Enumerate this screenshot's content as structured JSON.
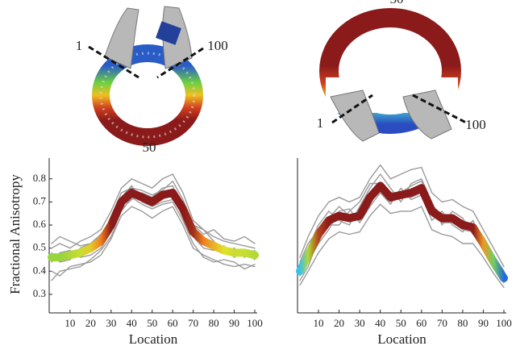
{
  "chart_data": [
    {
      "type": "line",
      "ylabel": "Fractional Anisotropy",
      "xlabel": "Location",
      "annotations": [
        "1",
        "100",
        "50"
      ],
      "x": [
        1,
        5,
        10,
        15,
        20,
        25,
        30,
        35,
        40,
        45,
        50,
        55,
        60,
        65,
        70,
        75,
        80,
        85,
        90,
        95,
        100
      ],
      "xlim": [
        1,
        100
      ],
      "xticks": [
        10,
        20,
        30,
        40,
        50,
        60,
        70,
        80,
        90,
        100
      ],
      "ylim": [
        0.23,
        0.89
      ],
      "yticks": [
        0.3,
        0.4,
        0.5,
        0.6,
        0.7,
        0.8
      ],
      "colormap": {
        "values": [
          0.36,
          0.4,
          0.45,
          0.49,
          0.53,
          0.58
        ],
        "colors": [
          "#1f4fd0",
          "#3cc0e6",
          "#7fd040",
          "#e2e22a",
          "#f08020",
          "#8b1a1a"
        ]
      },
      "series": [
        {
          "color": "#9a9a9a",
          "values": [
            0.5,
            0.52,
            0.5,
            0.53,
            0.55,
            0.58,
            0.66,
            0.76,
            0.8,
            0.78,
            0.76,
            0.8,
            0.82,
            0.74,
            0.62,
            0.58,
            0.55,
            0.53,
            0.52,
            0.51,
            0.5
          ]
        },
        {
          "color": "#9a9a9a",
          "values": [
            0.4,
            0.38,
            0.42,
            0.43,
            0.44,
            0.47,
            0.54,
            0.64,
            0.68,
            0.66,
            0.63,
            0.66,
            0.68,
            0.6,
            0.5,
            0.47,
            0.45,
            0.43,
            0.42,
            0.43,
            0.42
          ]
        },
        {
          "color": "#9a9a9a",
          "values": [
            0.48,
            0.44,
            0.45,
            0.5,
            0.52,
            0.56,
            0.62,
            0.72,
            0.77,
            0.7,
            0.68,
            0.7,
            0.71,
            0.7,
            0.6,
            0.58,
            0.53,
            0.48,
            0.5,
            0.46,
            0.49
          ]
        },
        {
          "color": "#9a9a9a",
          "values": [
            0.44,
            0.48,
            0.49,
            0.46,
            0.47,
            0.5,
            0.57,
            0.67,
            0.71,
            0.74,
            0.72,
            0.76,
            0.77,
            0.64,
            0.55,
            0.5,
            0.49,
            0.51,
            0.46,
            0.49,
            0.45
          ]
        },
        {
          "color": "#9a9a9a",
          "values": [
            0.36,
            0.4,
            0.41,
            0.42,
            0.45,
            0.49,
            0.55,
            0.66,
            0.72,
            0.69,
            0.67,
            0.69,
            0.7,
            0.62,
            0.52,
            0.46,
            0.44,
            0.45,
            0.44,
            0.41,
            0.43
          ]
        },
        {
          "color": "#9a9a9a",
          "values": [
            0.52,
            0.55,
            0.53,
            0.51,
            0.52,
            0.55,
            0.63,
            0.74,
            0.76,
            0.75,
            0.73,
            0.75,
            0.79,
            0.71,
            0.6,
            0.56,
            0.58,
            0.54,
            0.53,
            0.55,
            0.52
          ]
        },
        {
          "color": "colormap",
          "values": [
            0.46,
            0.46,
            0.47,
            0.48,
            0.5,
            0.53,
            0.6,
            0.7,
            0.74,
            0.72,
            0.7,
            0.73,
            0.74,
            0.67,
            0.57,
            0.53,
            0.51,
            0.49,
            0.48,
            0.48,
            0.47
          ]
        }
      ]
    },
    {
      "type": "line",
      "xlabel": "Location",
      "annotations": [
        "50",
        "1",
        "100"
      ],
      "x": [
        1,
        5,
        10,
        15,
        20,
        25,
        30,
        35,
        40,
        45,
        50,
        55,
        60,
        65,
        70,
        75,
        80,
        85,
        90,
        95,
        100
      ],
      "xlim": [
        1,
        100
      ],
      "xticks": [
        10,
        20,
        30,
        40,
        50,
        60,
        70,
        80,
        90,
        100
      ],
      "ylim": [
        0.23,
        0.89
      ],
      "colormap": {
        "values": [
          0.36,
          0.4,
          0.45,
          0.49,
          0.53,
          0.58
        ],
        "colors": [
          "#1f4fd0",
          "#3cc0e6",
          "#7fd040",
          "#e2e22a",
          "#f08020",
          "#8b1a1a"
        ]
      },
      "series": [
        {
          "color": "#9a9a9a",
          "values": [
            0.46,
            0.55,
            0.64,
            0.7,
            0.72,
            0.7,
            0.72,
            0.8,
            0.86,
            0.8,
            0.82,
            0.84,
            0.85,
            0.74,
            0.7,
            0.71,
            0.68,
            0.66,
            0.58,
            0.5,
            0.42
          ]
        },
        {
          "color": "#9a9a9a",
          "values": [
            0.34,
            0.4,
            0.48,
            0.54,
            0.57,
            0.56,
            0.57,
            0.64,
            0.69,
            0.65,
            0.66,
            0.66,
            0.68,
            0.58,
            0.56,
            0.55,
            0.52,
            0.52,
            0.46,
            0.39,
            0.33
          ]
        },
        {
          "color": "#9a9a9a",
          "values": [
            0.42,
            0.5,
            0.6,
            0.66,
            0.62,
            0.6,
            0.68,
            0.76,
            0.82,
            0.76,
            0.7,
            0.78,
            0.8,
            0.7,
            0.6,
            0.66,
            0.63,
            0.56,
            0.55,
            0.47,
            0.4
          ]
        },
        {
          "color": "#9a9a9a",
          "values": [
            0.38,
            0.44,
            0.52,
            0.58,
            0.66,
            0.67,
            0.61,
            0.68,
            0.74,
            0.69,
            0.76,
            0.71,
            0.73,
            0.62,
            0.66,
            0.6,
            0.57,
            0.62,
            0.5,
            0.42,
            0.35
          ]
        },
        {
          "color": "#9a9a9a",
          "values": [
            0.44,
            0.52,
            0.58,
            0.6,
            0.6,
            0.66,
            0.7,
            0.78,
            0.78,
            0.74,
            0.74,
            0.77,
            0.79,
            0.69,
            0.64,
            0.64,
            0.62,
            0.6,
            0.54,
            0.46,
            0.39
          ]
        },
        {
          "color": "#9a9a9a",
          "values": [
            0.36,
            0.42,
            0.54,
            0.63,
            0.68,
            0.64,
            0.62,
            0.7,
            0.75,
            0.7,
            0.72,
            0.72,
            0.74,
            0.64,
            0.61,
            0.61,
            0.58,
            0.57,
            0.5,
            0.41,
            0.36
          ]
        },
        {
          "color": "colormap",
          "values": [
            0.4,
            0.47,
            0.56,
            0.62,
            0.64,
            0.63,
            0.64,
            0.72,
            0.77,
            0.72,
            0.73,
            0.74,
            0.76,
            0.66,
            0.63,
            0.63,
            0.6,
            0.59,
            0.52,
            0.44,
            0.37
          ]
        }
      ]
    }
  ]
}
